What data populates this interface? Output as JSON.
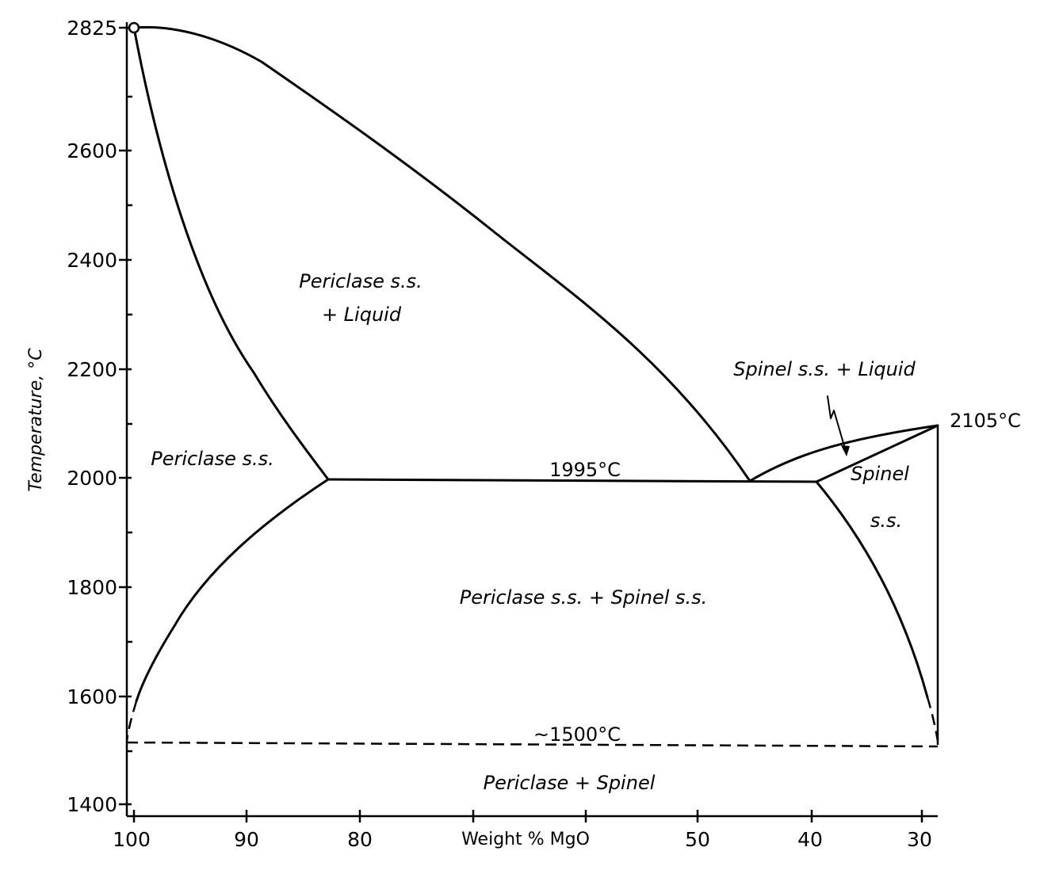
{
  "diagram": {
    "x_axis": {
      "title": "Weight % MgO",
      "ticks": [
        "100",
        "90",
        "80",
        "50",
        "40",
        "30"
      ]
    },
    "y_axis": {
      "title": "Temperature, °C",
      "ticks": [
        "2825",
        "2600",
        "2400",
        "2200",
        "2000",
        "1800",
        "1600",
        "1400"
      ]
    },
    "annotations": {
      "eutectic": "1995°C",
      "spinel_melting": "2105°C",
      "subsolidus": "~1500°C"
    },
    "regions": {
      "periclase_liquid_1": "Periclase  s.s.",
      "periclase_liquid_2": "+ Liquid",
      "periclase_ss": "Periclase s.s.",
      "spinel_liquid": "Spinel  s.s. + Liquid",
      "spinel_ss_1": "Spinel",
      "spinel_ss_2": "s.s.",
      "periclase_spinel_ss": "Periclase s.s.  +  Spinel  s.s.",
      "periclase_spinel": "Periclase  +  Spinel"
    }
  }
}
